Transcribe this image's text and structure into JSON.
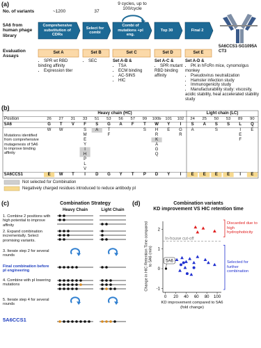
{
  "panel_a": {
    "label": "(a)",
    "variants_heading": "No. of variants",
    "counts": [
      "~1200",
      "37",
      "9 cycles, up to 100/cycle"
    ],
    "source": "5A6 from human phage library",
    "steps": [
      "Comprehensive substitution of CDRs",
      "Select for combi",
      "Combi of mutations +pI eng.",
      "Top 30",
      "Final 2"
    ],
    "product": "5A6CCS1-SG1095ACT3",
    "assays_heading": "Evaluation Assays",
    "sets": [
      {
        "name": "Set A",
        "items": [
          "SPR wt RBD binding affinity",
          "Expression titer"
        ]
      },
      {
        "name": "Set B",
        "items": [
          "SEC"
        ]
      },
      {
        "name": "Set C",
        "prefix": "Set A-B &",
        "items": [
          "TSA",
          "ECM binding",
          "AC-SINS",
          "HIC"
        ]
      },
      {
        "name": "Set D",
        "prefix": "Set A-C &",
        "items": [
          "SPR mutant RBD binding affinity"
        ]
      },
      {
        "name": "Set E",
        "prefix": "Set A-D &",
        "items": [
          "PK in hFcRn mice, cynomolgus monkey",
          "Pseudovirus neutralization",
          "Hamster infection study",
          "Immunogenicity study",
          "Manufacturability study: viscosity, acidic stability, heat accelerated stability study"
        ]
      }
    ]
  },
  "table": {
    "label": "(b)",
    "position_label": "Position",
    "chains": [
      {
        "title": "Heavy chain (HC)",
        "positions": [
          26,
          27,
          31,
          33,
          51,
          53,
          56,
          57,
          99,
          "100b",
          101,
          102
        ]
      },
      {
        "title": "Light chain (LC)",
        "positions": [
          24,
          25,
          50,
          53,
          89,
          90
        ]
      }
    ],
    "parent_label": "5A6",
    "parent": [
      "G",
      "T",
      "V",
      "F",
      "S",
      "G",
      "A",
      "F",
      "T",
      "W",
      "Y",
      "I",
      "S",
      "A",
      "S",
      "S",
      "L",
      "Q"
    ],
    "mutations_label": "Mutations identified from comprehensive mutagenesis of 5A6 to improve binding affinity",
    "mutations": [
      [
        "W",
        "W",
        null,
        "S",
        {
          "text": "A",
          "not_selected": true
        },
        "T",
        null,
        null,
        "S",
        "H",
        "E",
        "G",
        "A",
        null,
        "S",
        null,
        "I",
        "E"
      ],
      [
        null,
        null,
        null,
        "M",
        null,
        "F",
        null,
        null,
        null,
        "R",
        null,
        "R",
        null,
        null,
        null,
        null,
        "E",
        null
      ],
      [
        null,
        null,
        null,
        "E",
        null,
        null,
        null,
        null,
        null,
        {
          "text": "K",
          "not_selected": true
        },
        null,
        null,
        null,
        null,
        null,
        null,
        "F",
        null
      ],
      [
        null,
        null,
        null,
        "Y",
        null,
        null,
        null,
        null,
        null,
        "A",
        null,
        null,
        null,
        null,
        null,
        null,
        null,
        null
      ],
      [
        null,
        null,
        null,
        {
          "text": "I",
          "not_selected": true
        },
        null,
        null,
        null,
        null,
        null,
        "G",
        null,
        null,
        null,
        null,
        null,
        null,
        null,
        null
      ],
      [
        null,
        null,
        null,
        {
          "text": "H",
          "not_selected": true
        },
        null,
        null,
        null,
        null,
        null,
        "Q",
        null,
        null,
        null,
        null,
        null,
        null,
        null,
        null
      ],
      [
        null,
        null,
        null,
        "P",
        null,
        null,
        null,
        null,
        null,
        null,
        null,
        null,
        null,
        null,
        null,
        null,
        null,
        null
      ],
      [
        null,
        null,
        null,
        "L",
        null,
        null,
        null,
        null,
        null,
        null,
        null,
        null,
        null,
        null,
        null,
        null,
        null,
        null
      ],
      [
        null,
        null,
        null,
        "V",
        null,
        null,
        null,
        null,
        null,
        null,
        null,
        null,
        null,
        null,
        null,
        null,
        null,
        null
      ]
    ],
    "final_label": "5A6CCS1",
    "final": [
      {
        "text": "E",
        "charged": true
      },
      "W",
      "T",
      "I",
      "D",
      "G",
      "Y",
      "T",
      "P",
      "D",
      "Y",
      "I",
      {
        "text": "E",
        "charged": true
      },
      {
        "text": "E",
        "charged": true
      },
      {
        "text": "E",
        "charged": true
      },
      {
        "text": "E",
        "charged": true
      },
      "I",
      {
        "text": "E",
        "charged": true
      }
    ],
    "legend": {
      "not_selected": "Not selected for Combination",
      "charged": "Negatively charged residues introduced to reduce antibody pI"
    }
  },
  "panel_c": {
    "label": "(c)",
    "title": "Combination Strategy",
    "heavy": "Heavy Chain",
    "light": "Light Chain",
    "steps": [
      "1. Combine 2 positions with high potential to improve affinity",
      "2. Expand combination incrementally. Select promising variants.",
      "3. Iterate step 2 for several rounds",
      "Final combination before pI engineering",
      "4. Combine with pI lowering mutations",
      "5. Iterate step 4 for several rounds",
      "5A6CCS1"
    ]
  },
  "chart_data": {
    "type": "scatter",
    "label": "(d)",
    "title": "Combination variants",
    "subtitle": "KD improvement VS HIC retention time",
    "x_label": "KD improvement compared to 5A6 (fold change)",
    "y_label": "Change in HIC Retention Time compared to 5A6 (min)",
    "xlim": [
      -5,
      108
    ],
    "ylim": [
      -1.2,
      2.4
    ],
    "xticks": [
      0,
      20,
      40,
      60,
      80,
      100
    ],
    "yticks": [
      -1,
      0,
      1,
      2
    ],
    "cutoff": {
      "label": "In-house cut-off",
      "value": 1.4
    },
    "reference": {
      "label": "5A6",
      "x": 1,
      "y": 0
    },
    "series": [
      {
        "color": "#e02020",
        "marker": "triangle",
        "x": [
          58,
          73,
          62,
          95
        ],
        "y": [
          2.1,
          2.05,
          1.85,
          1.9
        ]
      },
      {
        "color": "#2030d0",
        "marker": "triangle",
        "x": [
          22,
          32,
          40,
          47,
          55,
          62,
          77,
          83,
          95,
          28,
          38,
          50
        ],
        "y": [
          0.45,
          0.55,
          0.35,
          0.5,
          0.3,
          0.6,
          0.45,
          0.3,
          0.2,
          -0.1,
          0.05,
          -0.3
        ]
      },
      {
        "color": "#2030d0",
        "marker": "circle",
        "x": [
          30,
          42,
          55,
          35
        ],
        "y": [
          0.2,
          -0.25,
          0.05,
          0.3
        ]
      }
    ],
    "annotations": [
      {
        "text": "Discarded due to high hydrophobicity",
        "color": "#e02020"
      },
      {
        "text": "Selected for further combination",
        "color": "#2030d0"
      }
    ]
  }
}
